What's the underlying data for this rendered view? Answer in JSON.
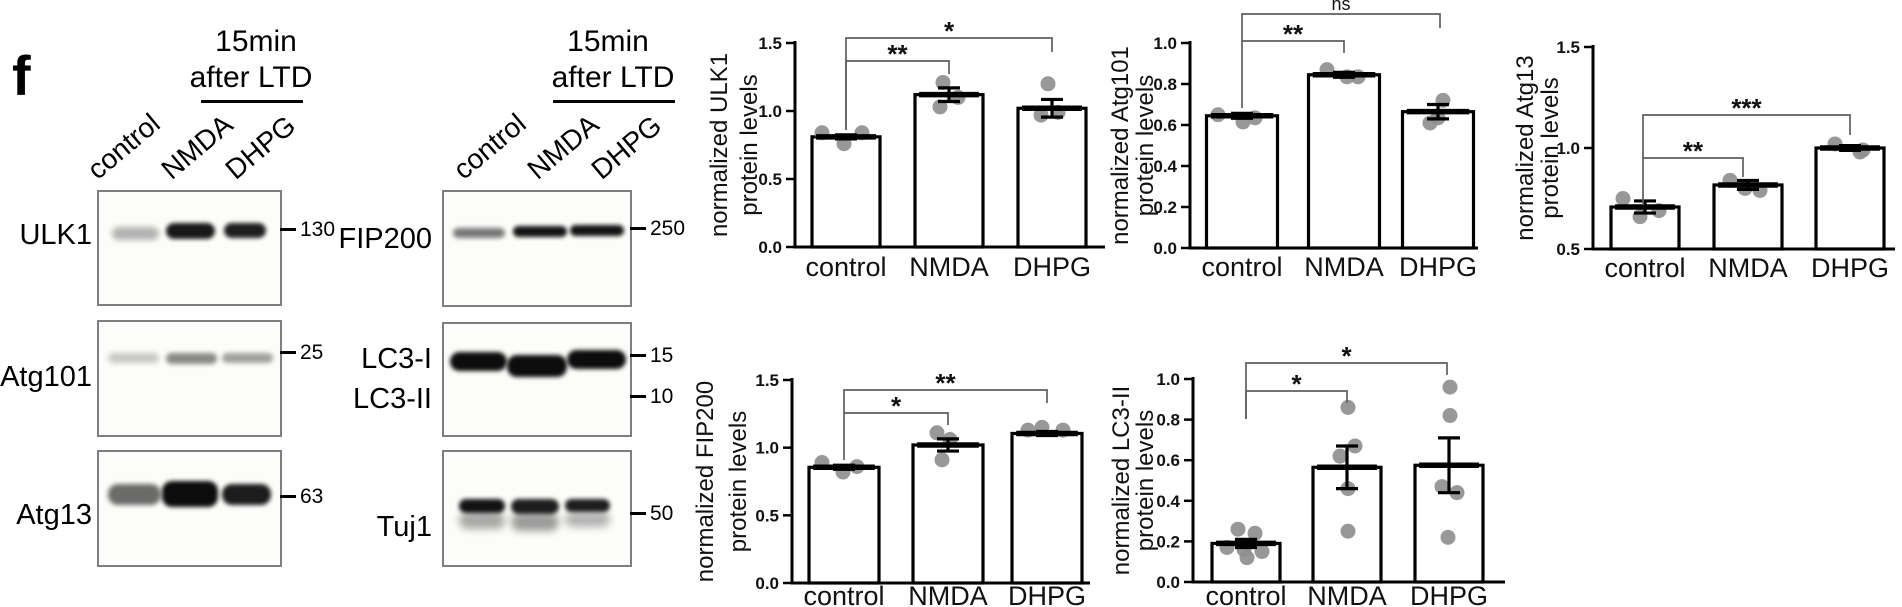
{
  "panel_label": "f",
  "colors": {
    "band": "#0c0c0c",
    "box_border": "#7e7e7e",
    "dot": "#8f8f8f",
    "bracket": "#5f5f5f",
    "axis": "#000000"
  },
  "western_blots": {
    "columns": [
      {
        "treatment_header_line1": "15min",
        "treatment_header_line2": "after LTD",
        "lane_labels": [
          "control",
          "NMDA",
          "DHPG"
        ],
        "blots": [
          {
            "labels": [
              "ULK1"
            ],
            "markers": [
              "130"
            ],
            "bands": [
              [
                7,
                31,
                26,
                12,
                0.3,
                3
              ],
              [
                37,
                28,
                27,
                14,
                0.95,
                2
              ],
              [
                69,
                28,
                23,
                13,
                0.92,
                2
              ]
            ]
          },
          {
            "labels": [
              "Atg101"
            ],
            "markers": [
              "25"
            ],
            "bands": [
              [
                5,
                27,
                28,
                9,
                0.22,
                3
              ],
              [
                37,
                27,
                28,
                10,
                0.48,
                2.5
              ],
              [
                68,
                27,
                28,
                9,
                0.38,
                2.5
              ]
            ]
          },
          {
            "labels": [
              "Atg13"
            ],
            "markers": [
              "63"
            ],
            "bands": [
              [
                5,
                28,
                29,
                19,
                0.6,
                2.5
              ],
              [
                35,
                26,
                31,
                23,
                1,
                2
              ],
              [
                68,
                28,
                27,
                19,
                0.93,
                2
              ]
            ]
          }
        ]
      },
      {
        "treatment_header_line1": "15min",
        "treatment_header_line2": "after LTD",
        "lane_labels": [
          "control",
          "NMDA",
          "DHPG"
        ],
        "blots": [
          {
            "labels": [
              "FIP200"
            ],
            "markers": [
              "250"
            ],
            "bands": [
              [
                5,
                32,
                28,
                9,
                0.55,
                2.5
              ],
              [
                37,
                30,
                29,
                10,
                0.97,
                2
              ],
              [
                68,
                29,
                29,
                10,
                0.97,
                2
              ]
            ]
          },
          {
            "labels": [
              "LC3-I",
              "LC3-II"
            ],
            "markers": [
              "15",
              "10"
            ],
            "bands": [
              [
                3,
                25,
                31,
                17,
                1,
                2
              ],
              [
                34,
                28,
                32,
                20,
                1,
                2
              ],
              [
                66,
                23,
                32,
                18,
                1,
                2
              ]
            ]
          },
          {
            "labels": [
              "Tuj1"
            ],
            "markers": [
              "50"
            ],
            "bands": [
              [
                8,
                42,
                25,
                12,
                0.97,
                2
              ],
              [
                36,
                42,
                26,
                13,
                0.92,
                2
              ],
              [
                65,
                42,
                24,
                11,
                0.92,
                2
              ],
              [
                8,
                53,
                25,
                15,
                0.35,
                4
              ],
              [
                36,
                54,
                26,
                16,
                0.4,
                4
              ],
              [
                65,
                53,
                24,
                13,
                0.3,
                4
              ]
            ]
          }
        ]
      }
    ]
  },
  "chart_data": [
    {
      "type": "bar",
      "ylabel_lines": [
        "normalized ULK1",
        "protein levels"
      ],
      "categories": [
        "control",
        "NMDA",
        "DHPG"
      ],
      "means": [
        0.81,
        1.12,
        1.02
      ],
      "sem": [
        0.015,
        0.05,
        0.065
      ],
      "points": [
        [
          [
            -24,
            0.84
          ],
          [
            16,
            0.84
          ],
          [
            -2,
            0.76
          ]
        ],
        [
          [
            -6,
            1.21
          ],
          [
            9,
            1.1
          ],
          [
            -9,
            1.03
          ]
        ],
        [
          [
            -4,
            1.2
          ],
          [
            -11,
            0.97
          ],
          [
            6,
            0.99
          ]
        ]
      ],
      "ylim": [
        0,
        1.5
      ],
      "yticks": [
        "0.0",
        "0.5",
        "1.0",
        "1.5"
      ],
      "significance": [
        {
          "from": 0,
          "to": 1,
          "label": "**"
        },
        {
          "from": 0,
          "to": 2,
          "label": "*"
        }
      ]
    },
    {
      "type": "bar",
      "ylabel_lines": [
        "normalized Atg101",
        "protein levels"
      ],
      "categories": [
        "control",
        "NMDA",
        "DHPG"
      ],
      "means": [
        0.645,
        0.845,
        0.665
      ],
      "sem": [
        0.012,
        0.012,
        0.035
      ],
      "points": [
        [
          [
            -24,
            0.65
          ],
          [
            1,
            0.615
          ],
          [
            13,
            0.635
          ]
        ],
        [
          [
            -17,
            0.87
          ],
          [
            3,
            0.835
          ],
          [
            14,
            0.835
          ]
        ],
        [
          [
            5,
            0.72
          ],
          [
            0,
            0.635
          ],
          [
            -8,
            0.61
          ]
        ]
      ],
      "ylim": [
        0,
        1.0
      ],
      "yticks": [
        "0.0",
        "0.2",
        "0.4",
        "0.6",
        "0.8",
        "1.0"
      ],
      "significance": [
        {
          "from": 0,
          "to": 1,
          "label": "**"
        },
        {
          "from": 0,
          "to": 2,
          "label": "ns"
        }
      ]
    },
    {
      "type": "bar",
      "ylabel_lines": [
        "normalized Atg13",
        "protein levels"
      ],
      "categories": [
        "control",
        "NMDA",
        "DHPG"
      ],
      "means": [
        0.708,
        0.817,
        1.0
      ],
      "sem": [
        0.03,
        0.022,
        0.012
      ],
      "points": [
        [
          [
            -22,
            0.75
          ],
          [
            -5,
            0.66
          ],
          [
            14,
            0.69
          ]
        ],
        [
          [
            -18,
            0.84
          ],
          [
            -3,
            0.8
          ],
          [
            12,
            0.79
          ]
        ],
        [
          [
            -15,
            1.02
          ],
          [
            10,
            0.98
          ],
          [
            13,
            0.99
          ]
        ]
      ],
      "ylim": [
        0.5,
        1.5
      ],
      "yticks": [
        "0.5",
        "1.0",
        "1.5"
      ],
      "significance": [
        {
          "from": 0,
          "to": 1,
          "label": "**"
        },
        {
          "from": 0,
          "to": 2,
          "label": "***"
        }
      ]
    },
    {
      "type": "bar",
      "ylabel_lines": [
        "normalized FIP200",
        "protein levels"
      ],
      "categories": [
        "control",
        "NMDA",
        "DHPG"
      ],
      "means": [
        0.855,
        1.02,
        1.105
      ],
      "sem": [
        0.015,
        0.045,
        0.015
      ],
      "points": [
        [
          [
            -22,
            0.89
          ],
          [
            -1,
            0.82
          ],
          [
            13,
            0.86
          ]
        ],
        [
          [
            -11,
            1.11
          ],
          [
            2,
            1.06
          ],
          [
            -6,
            0.91
          ]
        ],
        [
          [
            -19,
            1.13
          ],
          [
            -5,
            1.15
          ],
          [
            16,
            1.13
          ]
        ]
      ],
      "ylim": [
        0,
        1.5
      ],
      "yticks": [
        "0.0",
        "0.5",
        "1.0",
        "1.5"
      ],
      "significance": [
        {
          "from": 0,
          "to": 1,
          "label": "*"
        },
        {
          "from": 0,
          "to": 2,
          "label": "**"
        }
      ]
    },
    {
      "type": "bar",
      "ylabel_lines": [
        "normalized LC3-II",
        "protein levels"
      ],
      "categories": [
        "control",
        "NMDA",
        "DHPG"
      ],
      "means": [
        0.19,
        0.565,
        0.575
      ],
      "sem": [
        0.02,
        0.105,
        0.135
      ],
      "points": [
        [
          [
            -8,
            0.26
          ],
          [
            9,
            0.24
          ],
          [
            -19,
            0.17
          ],
          [
            -2,
            0.16
          ],
          [
            16,
            0.15
          ],
          [
            1,
            0.12
          ]
        ],
        [
          [
            1,
            0.86
          ],
          [
            8,
            0.67
          ],
          [
            -7,
            0.62
          ],
          [
            1,
            0.46
          ],
          [
            1,
            0.25
          ]
        ],
        [
          [
            1,
            0.96
          ],
          [
            1,
            0.82
          ],
          [
            -7,
            0.47
          ],
          [
            8,
            0.44
          ],
          [
            -1,
            0.22
          ]
        ]
      ],
      "ylim": [
        0,
        1.0
      ],
      "yticks": [
        "0.0",
        "0.2",
        "0.4",
        "0.6",
        "0.8",
        "1.0"
      ],
      "significance": [
        {
          "from": 0,
          "to": 1,
          "label": "*"
        },
        {
          "from": 0,
          "to": 2,
          "label": "*"
        }
      ]
    }
  ]
}
